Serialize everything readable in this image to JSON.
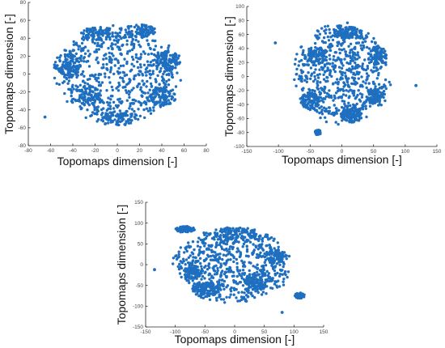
{
  "chart_data": [
    {
      "type": "scatter",
      "xlabel": "Topomaps dimension [-]",
      "ylabel": "Topomaps dimension [-]",
      "xlim": [
        -80,
        80
      ],
      "ylim": [
        -80,
        80
      ],
      "xticks": [
        -80,
        -60,
        -40,
        -20,
        0,
        20,
        40,
        60,
        80
      ],
      "yticks": [
        -80,
        -60,
        -40,
        -20,
        0,
        20,
        40,
        60,
        80
      ],
      "color": "#1f6fc0",
      "seed": 11,
      "clusters": [
        {
          "cx": 0,
          "cy": 0,
          "rx": 58,
          "ry": 58,
          "n": 700
        },
        {
          "cx": 45,
          "cy": 15,
          "rx": 12,
          "ry": 12,
          "n": 90
        },
        {
          "cx": 40,
          "cy": -25,
          "rx": 14,
          "ry": 12,
          "n": 90
        },
        {
          "cx": -45,
          "cy": 10,
          "rx": 12,
          "ry": 14,
          "n": 90
        },
        {
          "cx": 20,
          "cy": 48,
          "rx": 15,
          "ry": 8,
          "n": 80
        },
        {
          "cx": -20,
          "cy": 45,
          "rx": 14,
          "ry": 8,
          "n": 70
        },
        {
          "cx": 0,
          "cy": -50,
          "rx": 18,
          "ry": 8,
          "n": 70
        },
        {
          "cx": -25,
          "cy": -25,
          "rx": 12,
          "ry": 12,
          "n": 70
        }
      ],
      "outliers": [
        {
          "x": -65,
          "y": -48
        }
      ]
    },
    {
      "type": "scatter",
      "xlabel": "Topomaps dimension [-]",
      "ylabel": "Topomaps dimension [-]",
      "xlim": [
        -150,
        150
      ],
      "ylim": [
        -100,
        100
      ],
      "xticks": [
        -150,
        -100,
        -50,
        0,
        50,
        100,
        150
      ],
      "yticks": [
        -100,
        -80,
        -60,
        -40,
        -20,
        0,
        20,
        40,
        60,
        80,
        100
      ],
      "color": "#1f6fc0",
      "seed": 23,
      "clusters": [
        {
          "cx": 0,
          "cy": 5,
          "rx": 80,
          "ry": 75,
          "n": 650
        },
        {
          "cx": -50,
          "cy": -35,
          "rx": 16,
          "ry": 14,
          "n": 90
        },
        {
          "cx": 15,
          "cy": -55,
          "rx": 18,
          "ry": 12,
          "n": 100
        },
        {
          "cx": 55,
          "cy": -30,
          "rx": 16,
          "ry": 14,
          "n": 90
        },
        {
          "cx": 10,
          "cy": 62,
          "rx": 25,
          "ry": 10,
          "n": 90
        },
        {
          "cx": -40,
          "cy": 30,
          "rx": 15,
          "ry": 15,
          "n": 70
        },
        {
          "cx": 55,
          "cy": 30,
          "rx": 15,
          "ry": 15,
          "n": 70
        },
        {
          "cx": -38,
          "cy": -80,
          "rx": 5,
          "ry": 4,
          "n": 40
        }
      ],
      "outliers": [
        {
          "x": -105,
          "y": 48
        },
        {
          "x": 117,
          "y": -13
        }
      ]
    },
    {
      "type": "scatter",
      "xlabel": "Topomaps dimension [-]",
      "ylabel": "Topomaps dimension [-]",
      "xlim": [
        -150,
        150
      ],
      "ylim": [
        -150,
        150
      ],
      "xticks": [
        -150,
        -100,
        -50,
        0,
        50,
        100,
        150
      ],
      "yticks": [
        -150,
        -100,
        -50,
        0,
        50,
        100,
        150
      ],
      "color": "#1f6fc0",
      "seed": 37,
      "clusters": [
        {
          "cx": -5,
          "cy": 0,
          "rx": 105,
          "ry": 95,
          "n": 700
        },
        {
          "cx": -85,
          "cy": 85,
          "rx": 18,
          "ry": 8,
          "n": 80
        },
        {
          "cx": 0,
          "cy": 75,
          "rx": 45,
          "ry": 15,
          "n": 100
        },
        {
          "cx": -50,
          "cy": -60,
          "rx": 25,
          "ry": 20,
          "n": 100
        },
        {
          "cx": 40,
          "cy": -40,
          "rx": 25,
          "ry": 20,
          "n": 100
        },
        {
          "cx": -70,
          "cy": -20,
          "rx": 15,
          "ry": 18,
          "n": 60
        },
        {
          "cx": 70,
          "cy": 20,
          "rx": 18,
          "ry": 18,
          "n": 70
        },
        {
          "cx": 110,
          "cy": -75,
          "rx": 9,
          "ry": 7,
          "n": 45
        }
      ],
      "outliers": [
        {
          "x": -135,
          "y": -12
        },
        {
          "x": 80,
          "y": -115
        }
      ]
    }
  ]
}
